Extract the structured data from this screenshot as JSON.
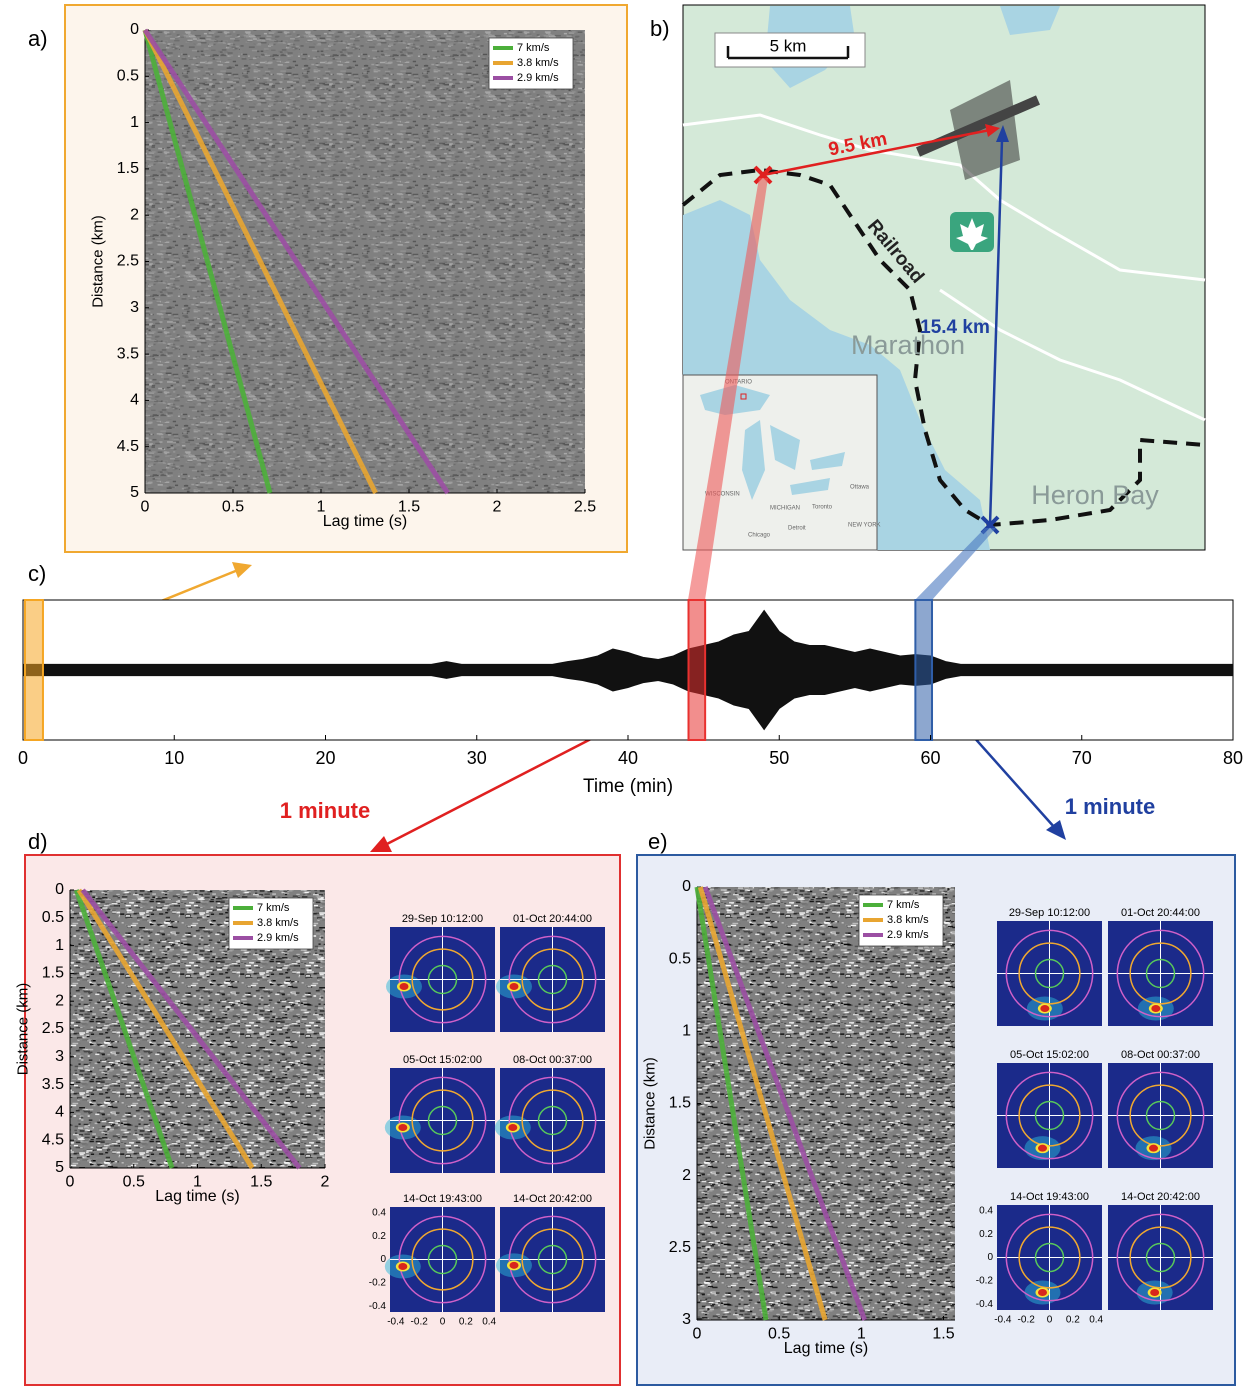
{
  "panel_labels": [
    "a)",
    "b)",
    "c)",
    "d)",
    "e)"
  ],
  "map": {
    "scale": "5 km",
    "distances": [
      "9.5 km",
      "15.4 km"
    ],
    "railroad": "Railroad",
    "towns": [
      "Marathon",
      "Heron Bay"
    ],
    "inset_labels": [
      "ONTARIO",
      "WISCONSIN",
      "MICHIGAN",
      "Ottawa",
      "Toronto",
      "Detroit",
      "Chicago",
      "NEW YORK"
    ]
  },
  "chart_data": [
    {
      "type": "line",
      "xlabel": "Lag time (s)",
      "ylabel": "Distance (km)",
      "xlim": [
        0,
        2.5
      ],
      "xticks": [
        0,
        0.5,
        1,
        1.5,
        2,
        2.5
      ],
      "ylim": [
        5,
        0
      ],
      "yticks": [
        0,
        0.5,
        1,
        1.5,
        2,
        2.5,
        3,
        3.5,
        4,
        4.5,
        5
      ],
      "legend": "upper right",
      "series": [
        {
          "name": "7 km/s",
          "color": "#4caf3a",
          "x": [
            0,
            0.71
          ],
          "values": [
            0,
            5
          ]
        },
        {
          "name": "3.8 km/s",
          "color": "#e8a531",
          "x": [
            0,
            1.31
          ],
          "values": [
            0,
            5
          ]
        },
        {
          "name": "2.9 km/s",
          "color": "#9b4fa3",
          "x": [
            0,
            1.72
          ],
          "values": [
            0,
            5
          ]
        }
      ]
    },
    {
      "type": "area",
      "xlabel": "Time (min)",
      "xlim": [
        0,
        80
      ],
      "xticks": [
        0,
        10,
        20,
        30,
        40,
        50,
        60,
        70,
        80
      ],
      "ylim": [
        -1,
        1
      ],
      "color": "#111111",
      "x": [
        0,
        1,
        2,
        3,
        4,
        5,
        6,
        7,
        8,
        9,
        10,
        11,
        12,
        13,
        14,
        15,
        16,
        17,
        18,
        19,
        20,
        21,
        22,
        23,
        24,
        25,
        26,
        27,
        28,
        29,
        30,
        31,
        32,
        33,
        34,
        35,
        36,
        37,
        38,
        39,
        40,
        41,
        42,
        43,
        44,
        45,
        46,
        47,
        48,
        49,
        50,
        51,
        52,
        53,
        54,
        55,
        56,
        57,
        58,
        59,
        60,
        61,
        62,
        63,
        64,
        65,
        66,
        67,
        68,
        69,
        70,
        71,
        72,
        73,
        74,
        75,
        76,
        77,
        78,
        79,
        80
      ],
      "values": [
        0.08,
        0.08,
        0.08,
        0.08,
        0.08,
        0.08,
        0.08,
        0.08,
        0.08,
        0.08,
        0.08,
        0.08,
        0.08,
        0.08,
        0.08,
        0.08,
        0.08,
        0.08,
        0.08,
        0.08,
        0.08,
        0.08,
        0.08,
        0.08,
        0.08,
        0.08,
        0.08,
        0.08,
        0.12,
        0.08,
        0.08,
        0.08,
        0.08,
        0.08,
        0.08,
        0.08,
        0.12,
        0.15,
        0.2,
        0.3,
        0.25,
        0.18,
        0.15,
        0.2,
        0.3,
        0.35,
        0.4,
        0.5,
        0.55,
        0.85,
        0.55,
        0.4,
        0.35,
        0.35,
        0.3,
        0.25,
        0.3,
        0.25,
        0.2,
        0.22,
        0.2,
        0.12,
        0.08,
        0.08,
        0.08,
        0.08,
        0.08,
        0.08,
        0.08,
        0.08,
        0.08,
        0.08,
        0.08,
        0.08,
        0.08,
        0.08,
        0.08,
        0.08,
        0.08,
        0.08,
        0.08
      ],
      "windows": [
        {
          "range": [
            0.13,
            1.32
          ],
          "color": "#f5a623"
        },
        {
          "range": [
            44.0,
            45.1
          ],
          "color": "#e8312f"
        },
        {
          "range": [
            59.0,
            60.1
          ],
          "color": "#2f5ea8"
        }
      ]
    },
    {
      "type": "line",
      "xlabel": "Lag time (s)",
      "ylabel": "Distance (km)",
      "annotation": "1 minute",
      "xlim": [
        0,
        2
      ],
      "xticks": [
        0,
        0.5,
        1,
        1.5,
        2
      ],
      "ylim": [
        5,
        0
      ],
      "yticks": [
        0,
        0.5,
        1,
        1.5,
        2,
        2.5,
        3,
        3.5,
        4,
        4.5,
        5
      ],
      "legend": "upper right",
      "series": [
        {
          "name": "7 km/s",
          "color": "#4caf3a",
          "x": [
            0.05,
            0.8
          ],
          "values": [
            0,
            5
          ]
        },
        {
          "name": "3.8 km/s",
          "color": "#e8a531",
          "x": [
            0.07,
            1.43
          ],
          "values": [
            0,
            5
          ]
        },
        {
          "name": "2.9 km/s",
          "color": "#9b4fa3",
          "x": [
            0.1,
            1.8
          ],
          "values": [
            0,
            5
          ]
        }
      ],
      "insets": {
        "xlim": [
          -0.45,
          0.45
        ],
        "ylim": [
          -0.45,
          0.45
        ],
        "xticks": [
          -0.4,
          -0.2,
          0,
          0.2,
          0.4
        ],
        "yticks": [
          0.4,
          0.2,
          0,
          -0.2,
          -0.4
        ],
        "rings": [
          {
            "r": 0.12,
            "color": "#58c85a"
          },
          {
            "r": 0.26,
            "color": "#f0a830"
          },
          {
            "r": 0.37,
            "color": "#d060c8"
          }
        ],
        "maps": [
          {
            "title": "29-Sep 10:12:00",
            "peak": [
              -0.33,
              -0.06
            ]
          },
          {
            "title": "01-Oct 20:44:00",
            "peak": [
              -0.33,
              -0.06
            ]
          },
          {
            "title": "05-Oct 15:02:00",
            "peak": [
              -0.34,
              -0.06
            ]
          },
          {
            "title": "08-Oct 00:37:00",
            "peak": [
              -0.34,
              -0.06
            ]
          },
          {
            "title": "14-Oct 19:43:00",
            "peak": [
              -0.34,
              -0.06
            ]
          },
          {
            "title": "14-Oct 20:42:00",
            "peak": [
              -0.33,
              -0.05
            ]
          }
        ]
      }
    },
    {
      "type": "line",
      "xlabel": "Lag time (s)",
      "ylabel": "Distance (km)",
      "annotation": "1 minute",
      "xlim": [
        0,
        1.57
      ],
      "xticks": [
        0,
        0.5,
        1,
        1.5
      ],
      "ylim": [
        3,
        0
      ],
      "yticks": [
        0,
        0.5,
        1,
        1.5,
        2,
        2.5,
        3
      ],
      "legend": "upper right",
      "series": [
        {
          "name": "7 km/s",
          "color": "#4caf3a",
          "x": [
            0,
            0.42
          ],
          "values": [
            0,
            3
          ]
        },
        {
          "name": "3.8 km/s",
          "color": "#e8a531",
          "x": [
            0.02,
            0.78
          ],
          "values": [
            0,
            3
          ]
        },
        {
          "name": "2.9 km/s",
          "color": "#9b4fa3",
          "x": [
            0.05,
            1.02
          ],
          "values": [
            0,
            3
          ]
        }
      ],
      "insets": {
        "xlim": [
          -0.45,
          0.45
        ],
        "ylim": [
          -0.45,
          0.45
        ],
        "xticks": [
          -0.4,
          -0.2,
          0,
          0.2,
          0.4
        ],
        "yticks": [
          0.4,
          0.2,
          0,
          -0.2,
          -0.4
        ],
        "rings": [
          {
            "r": 0.12,
            "color": "#58c85a"
          },
          {
            "r": 0.26,
            "color": "#f0a830"
          },
          {
            "r": 0.37,
            "color": "#d060c8"
          }
        ],
        "maps": [
          {
            "title": "29-Sep 10:12:00",
            "peak": [
              -0.04,
              -0.3
            ]
          },
          {
            "title": "01-Oct 20:44:00",
            "peak": [
              -0.04,
              -0.3
            ]
          },
          {
            "title": "05-Oct 15:02:00",
            "peak": [
              -0.06,
              -0.28
            ]
          },
          {
            "title": "08-Oct 00:37:00",
            "peak": [
              -0.06,
              -0.28
            ]
          },
          {
            "title": "14-Oct 19:43:00",
            "peak": [
              -0.06,
              -0.3
            ]
          },
          {
            "title": "14-Oct 20:42:00",
            "peak": [
              -0.05,
              -0.3
            ]
          }
        ]
      }
    }
  ]
}
